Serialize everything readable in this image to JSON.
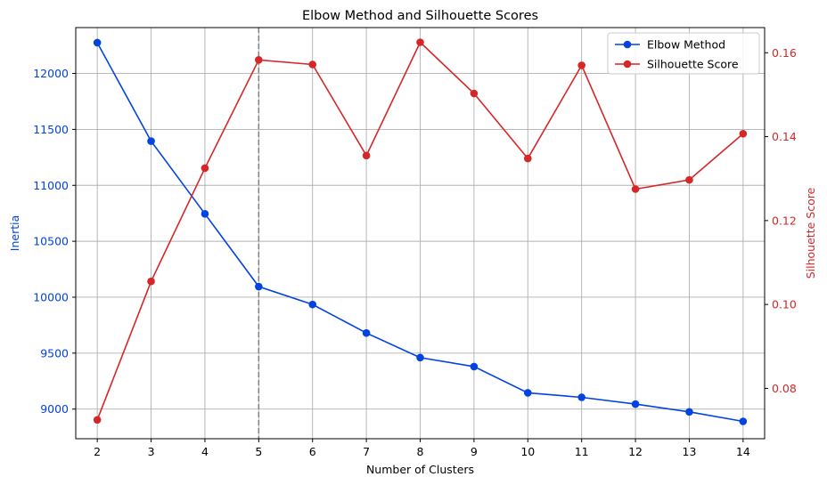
{
  "chart_data": {
    "type": "line",
    "title": "Elbow Method and Silhouette Scores",
    "xlabel": "Number of Clusters",
    "x": [
      2,
      3,
      4,
      5,
      6,
      7,
      8,
      9,
      10,
      11,
      12,
      13,
      14
    ],
    "xlim": [
      1.6,
      14.4
    ],
    "y_left": {
      "label": "Inertia",
      "ylim": [
        8735,
        12410
      ],
      "ticks": [
        9000,
        9500,
        10000,
        10500,
        11000,
        11500,
        12000
      ]
    },
    "y_right": {
      "label": "Silhouette Score",
      "ylim": [
        0.068,
        0.166
      ],
      "ticks": [
        0.08,
        0.1,
        0.12,
        0.14,
        0.16
      ],
      "tick_labels": [
        "0.08",
        "0.10",
        "0.12",
        "0.14",
        "0.16"
      ]
    },
    "series": [
      {
        "name": "Elbow Method",
        "axis": "left",
        "color": "#0343df",
        "values": [
          12275,
          11395,
          10745,
          10095,
          9935,
          9680,
          9460,
          9380,
          9145,
          9105,
          9045,
          8975,
          8890
        ]
      },
      {
        "name": "Silhouette Score",
        "axis": "right",
        "color": "#d62728",
        "values": [
          0.0725,
          0.1055,
          0.1325,
          0.1583,
          0.1572,
          0.1355,
          0.1625,
          0.1503,
          0.1348,
          0.157,
          0.1275,
          0.1297,
          0.1407
        ]
      }
    ],
    "annotation": {
      "type": "vertical-dashed-line",
      "x": 5,
      "color": "#808080"
    },
    "grid": true,
    "legend_position": "top-right",
    "colors": {
      "left_axis": "#0343df",
      "right_axis": "#d62728",
      "grid": "#b0b0b0",
      "vline": "#808080"
    }
  }
}
